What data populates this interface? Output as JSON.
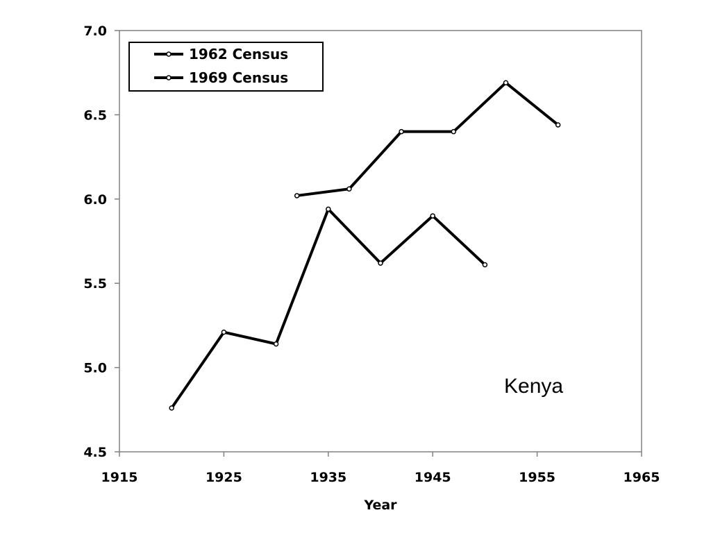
{
  "chart_data": {
    "type": "line",
    "title": "",
    "xlabel": "Year",
    "ylabel": "",
    "xlim": [
      1915,
      1965
    ],
    "ylim": [
      4.5,
      7.0
    ],
    "xticks": [
      1915,
      1925,
      1935,
      1945,
      1955,
      1965
    ],
    "xtick_labels": [
      "1915",
      "1925",
      "1935",
      "1945",
      "1955",
      "1965"
    ],
    "yticks": [
      4.5,
      5.0,
      5.5,
      6.0,
      6.5,
      7.0
    ],
    "ytick_labels": [
      "4.5",
      "5.0",
      "5.5",
      "6.0",
      "6.5",
      "7.0"
    ],
    "grid": false,
    "legend_position": "top-left",
    "annotation": "Kenya",
    "series": [
      {
        "name": "1962 Census",
        "x": [
          1920,
          1925,
          1930,
          1935,
          1940,
          1945,
          1950
        ],
        "y": [
          4.76,
          5.21,
          5.14,
          5.94,
          5.62,
          5.9,
          5.61
        ]
      },
      {
        "name": "1969 Census",
        "x": [
          1932,
          1937,
          1942,
          1947,
          1952,
          1957
        ],
        "y": [
          6.02,
          6.06,
          6.4,
          6.4,
          6.69,
          6.44
        ]
      }
    ],
    "colors": {
      "line": "#000000",
      "marker_fill": "#ffffff"
    }
  }
}
